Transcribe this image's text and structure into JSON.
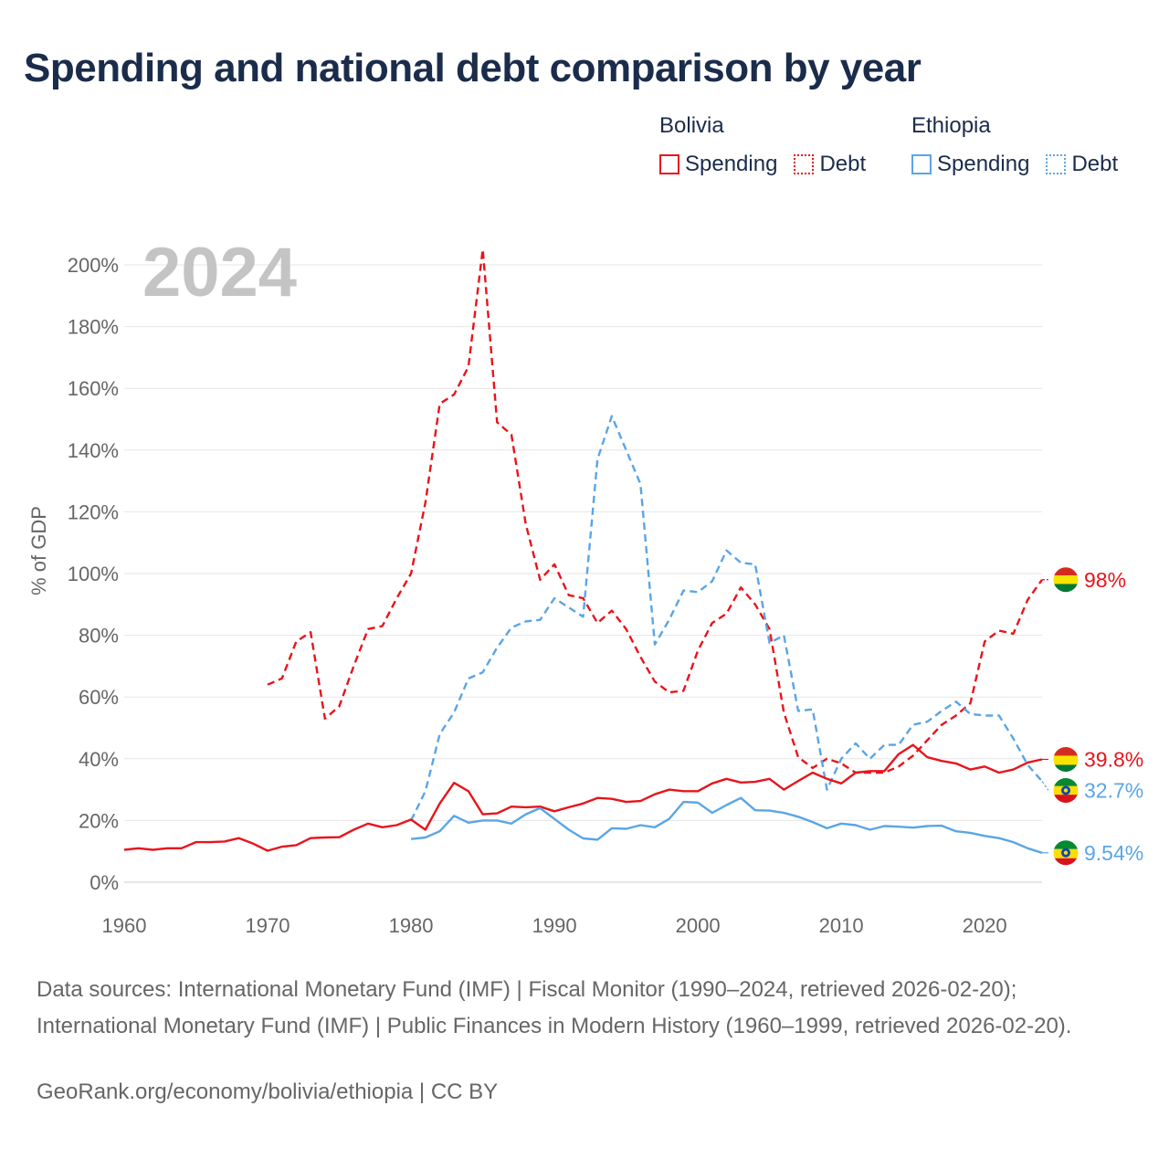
{
  "title": "Spending and national debt comparison by year",
  "legend": {
    "groups": [
      {
        "name": "Bolivia",
        "items": [
          {
            "label": "Spending",
            "style": "solid",
            "color": "#e8141b"
          },
          {
            "label": "Debt",
            "style": "dotted",
            "color": "#e8141b"
          }
        ]
      },
      {
        "name": "Ethiopia",
        "items": [
          {
            "label": "Spending",
            "style": "solid",
            "color": "#5aa5e6"
          },
          {
            "label": "Debt",
            "style": "dotted",
            "color": "#5aa5e6"
          }
        ]
      }
    ]
  },
  "footer": {
    "sources": "Data sources: International Monetary Fund (IMF) | Fiscal Monitor (1990–2024, retrieved 2026-02-20); International Monetary Fund (IMF) | Public Finances in Modern History (1960–1999, retrieved 2026-02-20).",
    "credit": "GeoRank.org/economy/bolivia/ethiopia | CC BY"
  },
  "chart_data": {
    "type": "line",
    "year_watermark": "2024",
    "ylabel": "% of GDP",
    "xlabel": "",
    "xlim": [
      1960,
      2024
    ],
    "ylim": [
      0,
      200
    ],
    "xticks": [
      1960,
      1970,
      1980,
      1990,
      2000,
      2010,
      2020
    ],
    "yticks": [
      0,
      20,
      40,
      60,
      80,
      100,
      120,
      140,
      160,
      180,
      200
    ],
    "ytick_labels": [
      "0%",
      "20%",
      "40%",
      "60%",
      "80%",
      "100%",
      "120%",
      "140%",
      "160%",
      "180%",
      "200%"
    ],
    "series": [
      {
        "name": "Bolivia Debt",
        "country": "Bolivia",
        "measure": "Debt",
        "color": "#e8141b",
        "dash": "dashed",
        "end_label": "98%",
        "x": [
          1970,
          1971,
          1972,
          1973,
          1974,
          1975,
          1976,
          1977,
          1978,
          1979,
          1980,
          1981,
          1982,
          1983,
          1984,
          1985,
          1986,
          1987,
          1988,
          1989,
          1990,
          1991,
          1992,
          1993,
          1994,
          1995,
          1996,
          1997,
          1998,
          1999,
          2000,
          2001,
          2002,
          2003,
          2004,
          2005,
          2006,
          2007,
          2008,
          2009,
          2010,
          2011,
          2012,
          2013,
          2014,
          2015,
          2016,
          2017,
          2018,
          2019,
          2020,
          2021,
          2022,
          2023,
          2024
        ],
        "y": [
          64,
          66,
          78,
          81,
          53,
          57,
          70,
          82,
          83,
          92,
          100,
          123,
          155,
          158,
          167,
          205,
          149,
          145,
          116,
          98,
          103,
          93,
          92,
          84,
          88,
          82,
          73,
          65,
          61.5,
          62,
          75,
          84,
          87,
          95.5,
          90,
          82,
          55,
          40.5,
          37,
          40,
          38.5,
          35.5,
          35.5,
          35.5,
          37.5,
          41,
          46,
          51,
          54,
          58,
          78,
          81.5,
          80.5,
          91.5,
          98
        ]
      },
      {
        "name": "Ethiopia Debt",
        "country": "Ethiopia",
        "measure": "Debt",
        "color": "#5aa5e6",
        "dash": "dashed",
        "end_label": "32.7%",
        "x": [
          1980,
          1981,
          1982,
          1983,
          1984,
          1985,
          1986,
          1987,
          1988,
          1989,
          1990,
          1991,
          1992,
          1993,
          1994,
          1995,
          1996,
          1997,
          1998,
          1999,
          2000,
          2001,
          2002,
          2003,
          2004,
          2005,
          2006,
          2007,
          2008,
          2009,
          2010,
          2011,
          2012,
          2013,
          2014,
          2015,
          2016,
          2017,
          2018,
          2019,
          2020,
          2021,
          2022,
          2023,
          2024
        ],
        "y": [
          20,
          29.5,
          48,
          55,
          66,
          68,
          76,
          82.5,
          84.5,
          85,
          92,
          89,
          86,
          137,
          151,
          140,
          129,
          77,
          85,
          94.5,
          94,
          97.5,
          107.5,
          103.5,
          103,
          77.5,
          80,
          55.5,
          56,
          30,
          40,
          45,
          40,
          44.5,
          44.5,
          51,
          52,
          55.5,
          58.5,
          54.5,
          54,
          54,
          46.5,
          38,
          32.7
        ]
      },
      {
        "name": "Bolivia Spending",
        "country": "Bolivia",
        "measure": "Spending",
        "color": "#e8141b",
        "dash": "solid",
        "end_label": "39.8%",
        "x": [
          1960,
          1961,
          1962,
          1963,
          1964,
          1965,
          1966,
          1967,
          1968,
          1969,
          1970,
          1971,
          1972,
          1973,
          1974,
          1975,
          1976,
          1977,
          1978,
          1979,
          1980,
          1981,
          1982,
          1983,
          1984,
          1985,
          1986,
          1987,
          1988,
          1989,
          1990,
          1991,
          1992,
          1993,
          1994,
          1995,
          1996,
          1997,
          1998,
          1999,
          2000,
          2001,
          2002,
          2003,
          2004,
          2005,
          2006,
          2007,
          2008,
          2009,
          2010,
          2011,
          2012,
          2013,
          2014,
          2015,
          2016,
          2017,
          2018,
          2019,
          2020,
          2021,
          2022,
          2023,
          2024
        ],
        "y": [
          10.5,
          11,
          10.5,
          11,
          11,
          13,
          13,
          13.2,
          14.3,
          12.5,
          10.2,
          11.5,
          12,
          14.3,
          14.5,
          14.6,
          17,
          19,
          17.8,
          18.5,
          20.3,
          17,
          25.5,
          32.2,
          29.5,
          22,
          22.3,
          24.5,
          24.3,
          24.5,
          23,
          24.3,
          25.5,
          27.3,
          27,
          26,
          26.3,
          28.5,
          30,
          29.5,
          29.5,
          32,
          33.5,
          32.3,
          32.5,
          33.5,
          30,
          32.8,
          35.5,
          33.5,
          32,
          35.5,
          36,
          36,
          41.5,
          44.5,
          40.5,
          39.3,
          38.5,
          36.5,
          37.5,
          35.5,
          36.5,
          38.8,
          39.8
        ]
      },
      {
        "name": "Ethiopia Spending",
        "country": "Ethiopia",
        "measure": "Spending",
        "color": "#5aa5e6",
        "dash": "solid",
        "end_label": "9.54%",
        "x": [
          1980,
          1981,
          1982,
          1983,
          1984,
          1985,
          1986,
          1987,
          1988,
          1989,
          1990,
          1991,
          1992,
          1993,
          1994,
          1995,
          1996,
          1997,
          1998,
          1999,
          2000,
          2001,
          2002,
          2003,
          2004,
          2005,
          2006,
          2007,
          2008,
          2009,
          2010,
          2011,
          2012,
          2013,
          2014,
          2015,
          2016,
          2017,
          2018,
          2019,
          2020,
          2021,
          2022,
          2023,
          2024
        ],
        "y": [
          14,
          14.5,
          16.5,
          21.5,
          19.3,
          20,
          20,
          19,
          22,
          24,
          20.5,
          17,
          14.2,
          13.8,
          17.5,
          17.3,
          18.5,
          17.8,
          20.5,
          26,
          25.8,
          22.5,
          25,
          27.3,
          23.3,
          23.2,
          22.5,
          21.2,
          19.5,
          17.5,
          19,
          18.5,
          17,
          18.2,
          18,
          17.7,
          18.2,
          18.3,
          16.5,
          16,
          15,
          14.3,
          13,
          11,
          9.54
        ]
      }
    ]
  }
}
